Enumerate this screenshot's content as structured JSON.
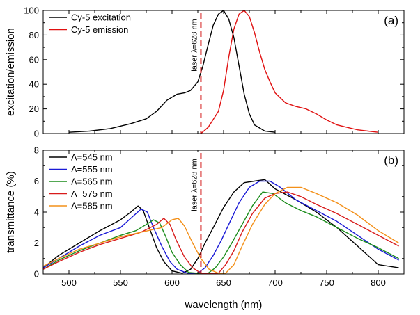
{
  "chart_data": [
    {
      "type": "line",
      "panel_label": "(a)",
      "ylabel": "excitation/emission",
      "xlabel": "",
      "xlim": [
        475,
        825
      ],
      "ylim": [
        0,
        100
      ],
      "yticks": [
        0,
        20,
        40,
        60,
        80,
        100
      ],
      "xticks": [
        500,
        550,
        600,
        650,
        700,
        750,
        800
      ],
      "legend_position": "top-left",
      "annotation": {
        "text": "laser λ=628 nm",
        "x": 628,
        "color": "#d62020"
      },
      "series": [
        {
          "name": "Cy-5 excitation",
          "color": "#000000",
          "x": [
            500,
            520,
            540,
            560,
            575,
            585,
            595,
            605,
            612,
            618,
            625,
            630,
            635,
            640,
            645,
            650,
            655,
            660,
            665,
            670,
            675,
            680,
            690,
            700
          ],
          "y": [
            1,
            2,
            4,
            8,
            12,
            18,
            27,
            32,
            33,
            35,
            42,
            55,
            72,
            88,
            97,
            100,
            93,
            78,
            55,
            32,
            16,
            7,
            2,
            1
          ]
        },
        {
          "name": "Cy-5 emission",
          "color": "#e01010",
          "x": [
            628,
            635,
            645,
            650,
            655,
            660,
            665,
            670,
            675,
            680,
            685,
            690,
            695,
            700,
            710,
            720,
            730,
            740,
            750,
            760,
            770,
            780,
            790,
            800
          ],
          "y": [
            0,
            5,
            18,
            35,
            62,
            85,
            97,
            100,
            95,
            82,
            66,
            52,
            42,
            33,
            25,
            22,
            20,
            16,
            11,
            7,
            5,
            3,
            2,
            1
          ]
        }
      ]
    },
    {
      "type": "line",
      "panel_label": "(b)",
      "ylabel": "transmittance (%)",
      "xlabel": "wavelength (nm)",
      "xlim": [
        475,
        825
      ],
      "ylim": [
        0,
        8
      ],
      "yticks": [
        0,
        2,
        4,
        6,
        8
      ],
      "xticks": [
        500,
        550,
        600,
        650,
        700,
        750,
        800
      ],
      "xtick_labels": [
        "500",
        "550",
        "600",
        "650",
        "700",
        "750",
        "800"
      ],
      "legend_position": "top-left",
      "annotation": {
        "text": "laser λ=628 nm",
        "x": 628,
        "color": "#d62020"
      },
      "series": [
        {
          "name": "Λ=545 nm",
          "color": "#000000",
          "x": [
            475,
            490,
            510,
            530,
            550,
            560,
            567,
            572,
            578,
            585,
            592,
            600,
            610,
            618,
            625,
            632,
            640,
            650,
            660,
            670,
            680,
            690,
            700,
            720,
            740,
            760,
            780,
            800,
            820
          ],
          "y": [
            0.4,
            1.2,
            2.0,
            2.8,
            3.5,
            4.0,
            4.4,
            4.1,
            3.0,
            1.7,
            0.8,
            0.2,
            0.05,
            0.3,
            1.0,
            2.0,
            3.0,
            4.3,
            5.3,
            5.9,
            6.0,
            6.1,
            5.5,
            4.8,
            4.0,
            3.0,
            1.8,
            0.6,
            0.4
          ]
        },
        {
          "name": "Λ=555 nm",
          "color": "#1a1ad6",
          "x": [
            475,
            490,
            510,
            530,
            550,
            560,
            570,
            576,
            582,
            590,
            598,
            605,
            615,
            625,
            632,
            640,
            648,
            655,
            665,
            675,
            685,
            695,
            705,
            720,
            740,
            760,
            780,
            800,
            820
          ],
          "y": [
            0.4,
            1.0,
            1.8,
            2.5,
            3.0,
            3.6,
            4.2,
            4.0,
            3.0,
            1.8,
            0.8,
            0.3,
            0.05,
            0.05,
            0.4,
            1.2,
            2.2,
            3.2,
            4.6,
            5.6,
            6.0,
            6.0,
            5.6,
            4.8,
            4.1,
            3.4,
            2.5,
            1.6,
            0.9
          ]
        },
        {
          "name": "Λ=565 nm",
          "color": "#1a8c1a",
          "x": [
            475,
            490,
            510,
            530,
            550,
            565,
            575,
            582,
            588,
            594,
            600,
            608,
            616,
            625,
            635,
            642,
            650,
            658,
            668,
            678,
            688,
            698,
            710,
            725,
            740,
            760,
            780,
            800,
            820
          ],
          "y": [
            0.3,
            0.9,
            1.5,
            2.0,
            2.5,
            2.8,
            3.2,
            3.5,
            3.3,
            2.4,
            1.4,
            0.6,
            0.1,
            0.05,
            0.05,
            0.4,
            1.1,
            2.0,
            3.2,
            4.4,
            5.3,
            5.2,
            4.6,
            4.1,
            3.7,
            3.0,
            2.3,
            1.7,
            1.0
          ]
        },
        {
          "name": "Λ=575 nm",
          "color": "#d81b1b",
          "x": [
            475,
            490,
            510,
            530,
            550,
            570,
            585,
            592,
            598,
            604,
            612,
            620,
            628,
            635,
            645,
            652,
            660,
            668,
            678,
            690,
            700,
            712,
            725,
            740,
            760,
            780,
            800,
            820
          ],
          "y": [
            0.3,
            0.8,
            1.4,
            1.9,
            2.3,
            2.7,
            3.2,
            3.6,
            3.2,
            2.2,
            1.1,
            0.4,
            0.05,
            0.05,
            0.05,
            0.6,
            1.5,
            2.7,
            3.9,
            4.9,
            5.2,
            5.3,
            5.0,
            4.5,
            3.9,
            3.2,
            2.5,
            1.8
          ]
        },
        {
          "name": "Λ=585 nm",
          "color": "#f39019",
          "x": [
            475,
            490,
            510,
            530,
            550,
            570,
            590,
            600,
            606,
            612,
            620,
            628,
            636,
            645,
            652,
            660,
            668,
            678,
            690,
            700,
            712,
            725,
            740,
            760,
            780,
            800,
            820
          ],
          "y": [
            0.5,
            1.0,
            1.6,
            2.0,
            2.4,
            2.7,
            3.0,
            3.5,
            3.6,
            3.1,
            2.0,
            1.0,
            0.3,
            0.05,
            0.05,
            0.6,
            1.8,
            3.2,
            4.5,
            5.2,
            5.6,
            5.6,
            5.2,
            4.6,
            3.8,
            2.8,
            2.0
          ]
        }
      ]
    }
  ]
}
